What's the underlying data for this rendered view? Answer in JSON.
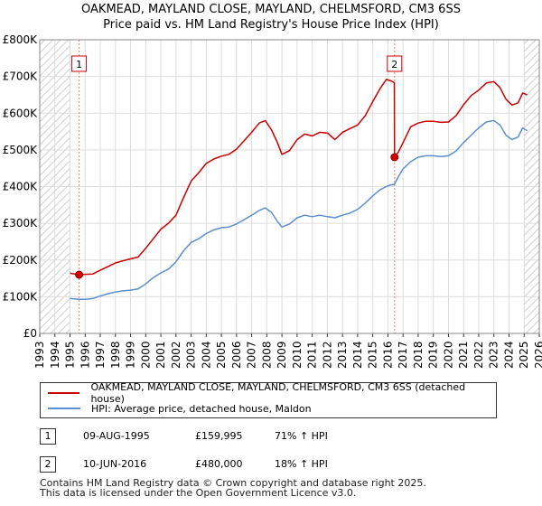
{
  "title_line1": "OAKMEAD, MAYLAND CLOSE, MAYLAND, CHELMSFORD, CM3 6SS",
  "title_line2": "Price paid vs. HM Land Registry's House Price Index (HPI)",
  "chart_data": {
    "type": "line",
    "xlim": [
      1993,
      2026
    ],
    "ylim": [
      0,
      800000
    ],
    "yticks": [
      {
        "v": 0,
        "label": "£0"
      },
      {
        "v": 100000,
        "label": "£100K"
      },
      {
        "v": 200000,
        "label": "£200K"
      },
      {
        "v": 300000,
        "label": "£300K"
      },
      {
        "v": 400000,
        "label": "£400K"
      },
      {
        "v": 500000,
        "label": "£500K"
      },
      {
        "v": 600000,
        "label": "£600K"
      },
      {
        "v": 700000,
        "label": "£700K"
      },
      {
        "v": 800000,
        "label": "£800K"
      }
    ],
    "xticks": [
      "1993",
      "1994",
      "1995",
      "1996",
      "1997",
      "1998",
      "1999",
      "2000",
      "2001",
      "2002",
      "2003",
      "2004",
      "2005",
      "2006",
      "2007",
      "2008",
      "2009",
      "2010",
      "2011",
      "2012",
      "2013",
      "2014",
      "2015",
      "2016",
      "2017",
      "2018",
      "2019",
      "2020",
      "2021",
      "2022",
      "2023",
      "2024",
      "2025",
      "2026"
    ],
    "hatch_ranges": [
      [
        1993,
        1995.0
      ],
      [
        2025.0,
        2026
      ]
    ],
    "grid": true,
    "series": [
      {
        "name": "OAKMEAD, MAYLAND CLOSE, MAYLAND, CHELMSFORD, CM3 6SS (detached house)",
        "color": "#cc0000",
        "points": [
          [
            1995.0,
            164000
          ],
          [
            1995.6,
            159995
          ],
          [
            1996.0,
            161000
          ],
          [
            1996.5,
            162000
          ],
          [
            1997.0,
            172000
          ],
          [
            1997.5,
            182000
          ],
          [
            1998.0,
            192000
          ],
          [
            1998.5,
            198000
          ],
          [
            1999.0,
            203000
          ],
          [
            1999.5,
            208000
          ],
          [
            2000.0,
            232000
          ],
          [
            2000.5,
            258000
          ],
          [
            2001.0,
            284000
          ],
          [
            2001.5,
            300000
          ],
          [
            2002.0,
            322000
          ],
          [
            2002.5,
            370000
          ],
          [
            2003.0,
            415000
          ],
          [
            2003.5,
            438000
          ],
          [
            2004.0,
            463000
          ],
          [
            2004.5,
            475000
          ],
          [
            2005.0,
            483000
          ],
          [
            2005.5,
            488000
          ],
          [
            2006.0,
            502000
          ],
          [
            2006.5,
            525000
          ],
          [
            2007.0,
            548000
          ],
          [
            2007.5,
            573000
          ],
          [
            2007.9,
            580000
          ],
          [
            2008.3,
            555000
          ],
          [
            2008.7,
            520000
          ],
          [
            2009.0,
            488000
          ],
          [
            2009.5,
            498000
          ],
          [
            2010.0,
            528000
          ],
          [
            2010.5,
            543000
          ],
          [
            2011.0,
            538000
          ],
          [
            2011.5,
            548000
          ],
          [
            2012.0,
            546000
          ],
          [
            2012.5,
            528000
          ],
          [
            2013.0,
            548000
          ],
          [
            2013.5,
            558000
          ],
          [
            2014.0,
            568000
          ],
          [
            2014.5,
            593000
          ],
          [
            2015.0,
            632000
          ],
          [
            2015.5,
            668000
          ],
          [
            2015.9,
            692000
          ],
          [
            2016.2,
            688000
          ],
          [
            2016.42,
            683000
          ],
          [
            2016.44,
            480000
          ],
          [
            2016.7,
            495000
          ],
          [
            2017.0,
            520000
          ],
          [
            2017.5,
            563000
          ],
          [
            2018.0,
            573000
          ],
          [
            2018.5,
            578000
          ],
          [
            2019.0,
            578000
          ],
          [
            2019.5,
            575000
          ],
          [
            2020.0,
            576000
          ],
          [
            2020.5,
            593000
          ],
          [
            2021.0,
            623000
          ],
          [
            2021.5,
            648000
          ],
          [
            2022.0,
            663000
          ],
          [
            2022.5,
            682000
          ],
          [
            2023.0,
            686000
          ],
          [
            2023.4,
            670000
          ],
          [
            2023.8,
            638000
          ],
          [
            2024.2,
            622000
          ],
          [
            2024.6,
            628000
          ],
          [
            2024.9,
            655000
          ],
          [
            2025.2,
            650000
          ]
        ]
      },
      {
        "name": "HPI: Average price, detached house, Maldon",
        "color": "#5b8fd0",
        "points": [
          [
            1995.0,
            95000
          ],
          [
            1995.6,
            93000
          ],
          [
            1996.0,
            93000
          ],
          [
            1996.5,
            95000
          ],
          [
            1997.0,
            102000
          ],
          [
            1997.5,
            108000
          ],
          [
            1998.0,
            113000
          ],
          [
            1998.5,
            116000
          ],
          [
            1999.0,
            118000
          ],
          [
            1999.5,
            121000
          ],
          [
            2000.0,
            135000
          ],
          [
            2000.5,
            152000
          ],
          [
            2001.0,
            165000
          ],
          [
            2001.5,
            175000
          ],
          [
            2002.0,
            195000
          ],
          [
            2002.5,
            225000
          ],
          [
            2003.0,
            248000
          ],
          [
            2003.5,
            258000
          ],
          [
            2004.0,
            272000
          ],
          [
            2004.5,
            282000
          ],
          [
            2005.0,
            288000
          ],
          [
            2005.5,
            290000
          ],
          [
            2006.0,
            298000
          ],
          [
            2006.5,
            310000
          ],
          [
            2007.0,
            322000
          ],
          [
            2007.5,
            335000
          ],
          [
            2007.9,
            342000
          ],
          [
            2008.3,
            330000
          ],
          [
            2008.7,
            305000
          ],
          [
            2009.0,
            290000
          ],
          [
            2009.5,
            298000
          ],
          [
            2010.0,
            315000
          ],
          [
            2010.5,
            322000
          ],
          [
            2011.0,
            318000
          ],
          [
            2011.5,
            322000
          ],
          [
            2012.0,
            318000
          ],
          [
            2012.5,
            315000
          ],
          [
            2013.0,
            322000
          ],
          [
            2013.5,
            328000
          ],
          [
            2014.0,
            338000
          ],
          [
            2014.5,
            355000
          ],
          [
            2015.0,
            375000
          ],
          [
            2015.5,
            392000
          ],
          [
            2015.9,
            400000
          ],
          [
            2016.2,
            405000
          ],
          [
            2016.42,
            406000
          ],
          [
            2016.7,
            428000
          ],
          [
            2017.0,
            448000
          ],
          [
            2017.5,
            468000
          ],
          [
            2018.0,
            480000
          ],
          [
            2018.5,
            484000
          ],
          [
            2019.0,
            484000
          ],
          [
            2019.5,
            482000
          ],
          [
            2020.0,
            484000
          ],
          [
            2020.5,
            497000
          ],
          [
            2021.0,
            520000
          ],
          [
            2021.5,
            540000
          ],
          [
            2022.0,
            560000
          ],
          [
            2022.5,
            576000
          ],
          [
            2023.0,
            580000
          ],
          [
            2023.4,
            568000
          ],
          [
            2023.8,
            540000
          ],
          [
            2024.2,
            528000
          ],
          [
            2024.6,
            535000
          ],
          [
            2024.9,
            560000
          ],
          [
            2025.2,
            552000
          ]
        ]
      }
    ],
    "sales": [
      {
        "n": "1",
        "x": 1995.6,
        "y": 159995
      },
      {
        "n": "2",
        "x": 2016.44,
        "y": 480000
      }
    ]
  },
  "legend": {
    "series1": "OAKMEAD, MAYLAND CLOSE, MAYLAND, CHELMSFORD, CM3 6SS (detached house)",
    "series2": "HPI: Average price, detached house, Maldon"
  },
  "sales_table": [
    {
      "n": "1",
      "date": "09-AUG-1995",
      "price": "£159,995",
      "hpi": "71% ↑ HPI"
    },
    {
      "n": "2",
      "date": "10-JUN-2016",
      "price": "£480,000",
      "hpi": "18% ↑ HPI"
    }
  ],
  "footer_line1": "Contains HM Land Registry data © Crown copyright and database right 2025.",
  "footer_line2": "This data is licensed under the Open Government Licence v3.0."
}
